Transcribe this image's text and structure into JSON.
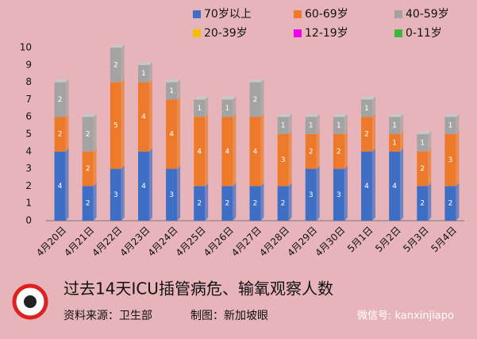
{
  "chart_data": {
    "type": "bar",
    "stacked": true,
    "title": "过去14天ICU插管病危、输氧观察人数",
    "source": "资料来源：卫生部",
    "author": "制图：新加坡眼",
    "watermark": "微信号: kanxinjiapo",
    "categories": [
      "4月20日",
      "4月21日",
      "4月22日",
      "4月23日",
      "4月24日",
      "4月25日",
      "4月26日",
      "4月27日",
      "4月28日",
      "4月29日",
      "4月30日",
      "5月1日",
      "5月2日",
      "5月3日",
      "5月4日"
    ],
    "series": [
      {
        "name": "70岁以上",
        "color": "#3f6fc4",
        "values": [
          4,
          2,
          3,
          4,
          3,
          2,
          2,
          2,
          2,
          3,
          3,
          4,
          4,
          2,
          2
        ]
      },
      {
        "name": "60-69岁",
        "color": "#ec7a2a",
        "values": [
          2,
          2,
          5,
          4,
          4,
          4,
          4,
          4,
          3,
          2,
          2,
          2,
          1,
          2,
          3
        ]
      },
      {
        "name": "40-59岁",
        "color": "#a3a3a3",
        "values": [
          2,
          2,
          2,
          1,
          1,
          1,
          1,
          2,
          1,
          1,
          1,
          1,
          1,
          1,
          1
        ]
      },
      {
        "name": "20-39岁",
        "color": "#f7be00",
        "values": [
          0,
          0,
          0,
          0,
          0,
          0,
          0,
          0,
          0,
          0,
          0,
          0,
          0,
          0,
          0
        ]
      },
      {
        "name": "12-19岁",
        "color": "#f000f0",
        "values": [
          0,
          0,
          0,
          0,
          0,
          0,
          0,
          0,
          0,
          0,
          0,
          0,
          0,
          0,
          0
        ]
      },
      {
        "name": "0-11岁",
        "color": "#3cb83c",
        "values": [
          0,
          0,
          0,
          0,
          0,
          0,
          0,
          0,
          0,
          0,
          0,
          0,
          0,
          0,
          0
        ]
      }
    ],
    "ylim": [
      0,
      10
    ],
    "yticks": [
      0,
      1,
      2,
      3,
      4,
      5,
      6,
      7,
      8,
      9,
      10
    ],
    "grid": false,
    "legend": "top-right"
  }
}
